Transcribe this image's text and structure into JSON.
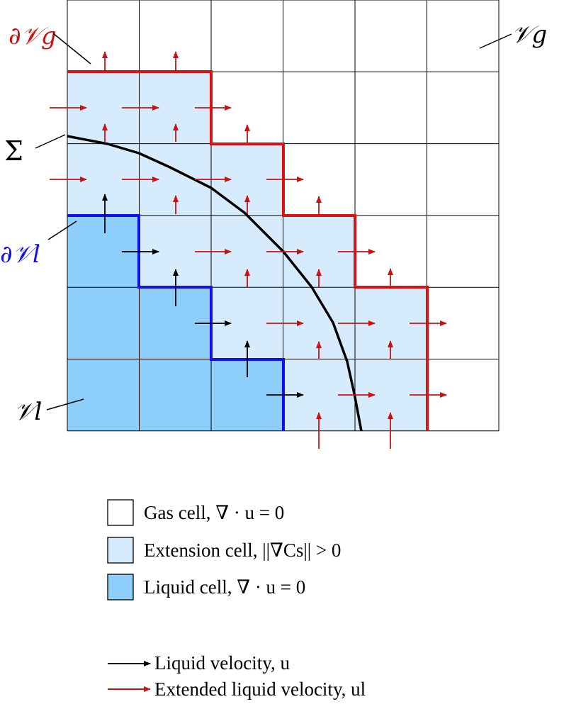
{
  "diagram": {
    "labels": {
      "gas_boundary": "∂𝒱g",
      "gas_region": "𝒱g",
      "interface": "Σ",
      "liquid_boundary": "∂𝒱l",
      "liquid_region": "𝒱l"
    },
    "grid": {
      "columns": 6,
      "rows": 6
    },
    "cells": [
      [
        "gas",
        "gas",
        "gas",
        "gas",
        "gas",
        "gas"
      ],
      [
        "extension",
        "extension",
        "gas",
        "gas",
        "gas",
        "gas"
      ],
      [
        "extension",
        "extension",
        "extension",
        "gas",
        "gas",
        "gas"
      ],
      [
        "liquid",
        "extension",
        "extension",
        "extension",
        "gas",
        "gas"
      ],
      [
        "liquid",
        "liquid",
        "extension",
        "extension",
        "extension",
        "gas"
      ],
      [
        "liquid",
        "liquid",
        "liquid",
        "extension",
        "extension",
        "gas"
      ]
    ],
    "colors": {
      "gas": "#ffffff",
      "extension": "#d6ebfb",
      "liquid": "#8ecefb",
      "gas_boundary": "#dd1111",
      "liquid_boundary": "#1111ee",
      "interface": "#000000",
      "extended_velocity_arrow": "#cc1111",
      "liquid_velocity_arrow": "#000000"
    }
  },
  "legend": {
    "cells": [
      {
        "id": "gas",
        "label": "Gas cell, ∇ · u = 0",
        "color": "#ffffff"
      },
      {
        "id": "extension",
        "label": "Extension cell, ||∇Cs|| > 0",
        "color": "#d6ebfb"
      },
      {
        "id": "liquid",
        "label": "Liquid cell, ∇ · u = 0",
        "color": "#8ecefb"
      }
    ],
    "arrows": [
      {
        "id": "liquid-velocity",
        "label": "Liquid velocity, u",
        "color": "#000000"
      },
      {
        "id": "extended-velocity",
        "label": "Extended liquid velocity, ul",
        "color": "#cc1111"
      }
    ]
  }
}
